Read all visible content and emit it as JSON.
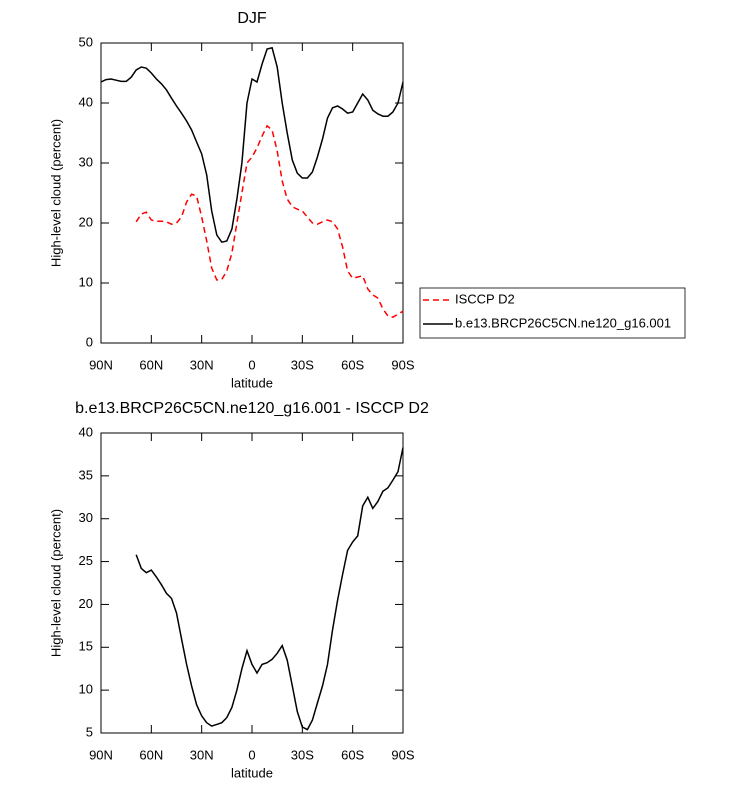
{
  "chart_data": [
    {
      "type": "line",
      "title": "DJF",
      "xlabel": "latitude",
      "ylabel": "High-level cloud (percent)",
      "x": [
        90,
        87,
        84,
        81,
        78,
        75,
        72,
        69,
        66,
        63,
        60,
        57,
        54,
        51,
        48,
        45,
        42,
        39,
        36,
        33,
        30,
        27,
        24,
        21,
        18,
        15,
        12,
        9,
        6,
        3,
        0,
        -3,
        -6,
        -9,
        -12,
        -15,
        -18,
        -21,
        -24,
        -27,
        -30,
        -33,
        -36,
        -39,
        -42,
        -45,
        -48,
        -51,
        -54,
        -57,
        -60,
        -63,
        -66,
        -69,
        -72,
        -75,
        -78,
        -81,
        -84,
        -87,
        -90
      ],
      "xlim": [
        90,
        -90
      ],
      "xticks": [
        {
          "value": 90,
          "label": "90N"
        },
        {
          "value": 60,
          "label": "60N"
        },
        {
          "value": 30,
          "label": "30N"
        },
        0,
        {
          "value": -30,
          "label": "30S"
        },
        {
          "value": -60,
          "label": "60S"
        },
        {
          "value": -90,
          "label": "90S"
        }
      ],
      "ylim": [
        0,
        50
      ],
      "yticks": [
        0,
        10,
        20,
        30,
        40,
        50
      ],
      "legend": "outside-right",
      "series": [
        {
          "name": "ISCCP D2",
          "color": "#ff0000",
          "dashed": true,
          "values": [
            null,
            null,
            null,
            null,
            null,
            null,
            null,
            20.2,
            21.5,
            21.8,
            20.5,
            20.3,
            20.3,
            20.2,
            19.8,
            20,
            21,
            23.5,
            24.8,
            24.5,
            21,
            17,
            12.5,
            10.5,
            10.6,
            12,
            15,
            20,
            25,
            30,
            31,
            32.5,
            34.5,
            36.2,
            35.5,
            32,
            27,
            24,
            22.7,
            22.3,
            22,
            21,
            20,
            19.8,
            20.2,
            20.5,
            20.2,
            19,
            16,
            12,
            10.8,
            11,
            11.2,
            9,
            8,
            7.5,
            5.7,
            4.5,
            4.3,
            4.8,
            5.3
          ]
        },
        {
          "name": "b.e13.BRCP26C5CN.ne120_g16.001",
          "color": "#000000",
          "dashed": false,
          "values": [
            43.5,
            43.9,
            44,
            43.8,
            43.6,
            43.6,
            44.3,
            45.5,
            46,
            45.8,
            45,
            44,
            43.2,
            42.2,
            40.8,
            39.5,
            38.3,
            37,
            35.5,
            33.5,
            31.5,
            28,
            22,
            18,
            16.8,
            17,
            19,
            24,
            30,
            40,
            44,
            43.5,
            46.5,
            49,
            49.2,
            46,
            40,
            35,
            30.5,
            28.3,
            27.5,
            27.5,
            28.5,
            31,
            34,
            37.5,
            39.2,
            39.5,
            39,
            38.3,
            38.5,
            40,
            41.5,
            40.5,
            38.8,
            38.2,
            37.8,
            37.8,
            38.5,
            40,
            43.5
          ]
        }
      ]
    },
    {
      "type": "line",
      "title": "b.e13.BRCP26C5CN.ne120_g16.001 - ISCCP D2",
      "xlabel": "latitude",
      "ylabel": "High-level cloud (percent)",
      "x": [
        90,
        87,
        84,
        81,
        78,
        75,
        72,
        69,
        66,
        63,
        60,
        57,
        54,
        51,
        48,
        45,
        42,
        39,
        36,
        33,
        30,
        27,
        24,
        21,
        18,
        15,
        12,
        9,
        6,
        3,
        0,
        -3,
        -6,
        -9,
        -12,
        -15,
        -18,
        -21,
        -24,
        -27,
        -30,
        -33,
        -36,
        -39,
        -42,
        -45,
        -48,
        -51,
        -54,
        -57,
        -60,
        -63,
        -66,
        -69,
        -72,
        -75,
        -78,
        -81,
        -84,
        -87,
        -90
      ],
      "xlim": [
        90,
        -90
      ],
      "xticks": [
        {
          "value": 90,
          "label": "90N"
        },
        {
          "value": 60,
          "label": "60N"
        },
        {
          "value": 30,
          "label": "30N"
        },
        0,
        {
          "value": -30,
          "label": "30S"
        },
        {
          "value": -60,
          "label": "60S"
        },
        {
          "value": -90,
          "label": "90S"
        }
      ],
      "ylim": [
        5,
        40
      ],
      "yticks": [
        5,
        10,
        15,
        20,
        25,
        30,
        35,
        40
      ],
      "series": [
        {
          "color": "#000000",
          "dashed": false,
          "values": [
            null,
            null,
            null,
            null,
            null,
            null,
            null,
            25.8,
            24.2,
            23.7,
            24,
            23.2,
            22.3,
            21.3,
            20.7,
            19,
            16,
            13,
            10.5,
            8.3,
            7,
            6.2,
            5.8,
            6,
            6.2,
            6.8,
            8,
            10,
            12.5,
            14.6,
            13,
            12,
            13,
            13.2,
            13.6,
            14.3,
            15.2,
            13.5,
            10.5,
            7.5,
            5.7,
            5.4,
            6.5,
            8.5,
            10.5,
            13,
            17,
            20.5,
            23.5,
            26.3,
            27.3,
            28,
            31.5,
            32.5,
            31.2,
            32,
            33.2,
            33.6,
            34.5,
            35.5,
            38.3
          ]
        }
      ]
    }
  ]
}
